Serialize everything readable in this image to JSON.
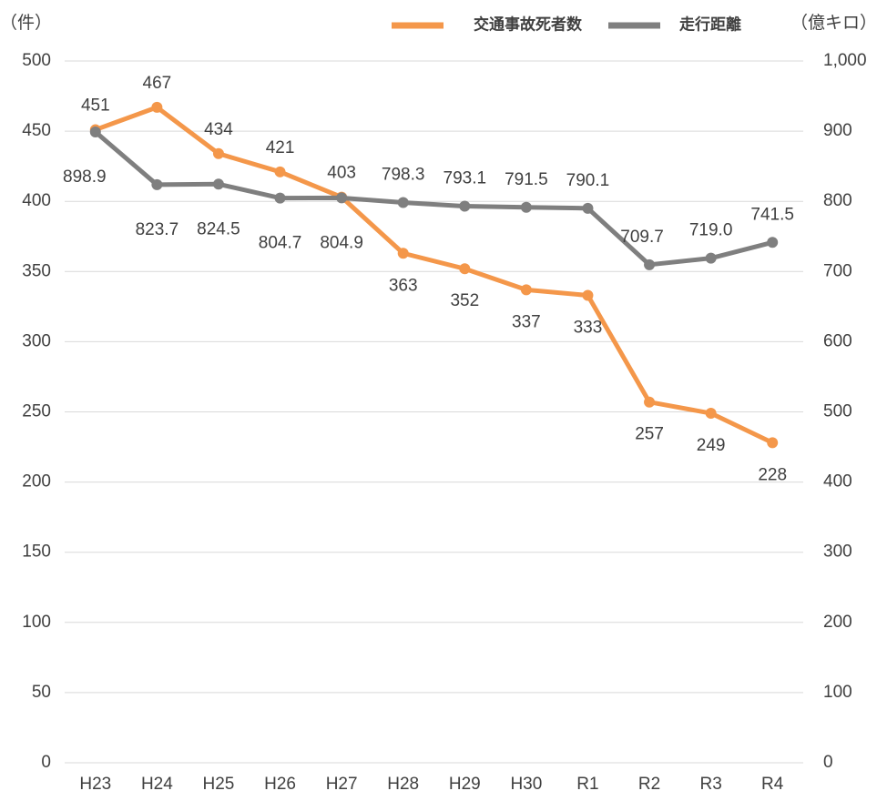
{
  "chart_data": {
    "type": "line",
    "y_label": "（件）",
    "y2_label": "（億キロ）",
    "categories": [
      "H23",
      "H24",
      "H25",
      "H26",
      "H27",
      "H28",
      "H29",
      "H30",
      "R1",
      "R2",
      "R3",
      "R4"
    ],
    "series": [
      {
        "name": "交通事故死者数",
        "color": "#f4974a",
        "values": [
          451,
          467,
          434,
          421,
          403,
          363,
          352,
          337,
          333,
          257,
          249,
          228
        ]
      },
      {
        "name": "走行距離",
        "color": "#7f7f7f",
        "axis": "y2",
        "values": [
          898.9,
          823.7,
          824.5,
          804.7,
          804.9,
          798.3,
          793.1,
          791.5,
          790.1,
          709.7,
          719.0,
          741.5
        ],
        "value_labels": [
          "898.9",
          "823.7",
          "824.5",
          "804.7",
          "804.9",
          "798.3",
          "793.1",
          "791.5",
          "790.1",
          "709.7",
          "719.0",
          "741.5"
        ]
      }
    ],
    "ylim": [
      0,
      500
    ],
    "yticks": [
      0,
      50,
      100,
      150,
      200,
      250,
      300,
      350,
      400,
      450,
      500
    ],
    "y2lim": [
      0,
      1000
    ],
    "y2ticks": [
      0,
      100,
      200,
      300,
      400,
      500,
      600,
      700,
      800,
      900,
      {
        "value": 1000,
        "label": "1,000"
      }
    ],
    "grid": true
  }
}
